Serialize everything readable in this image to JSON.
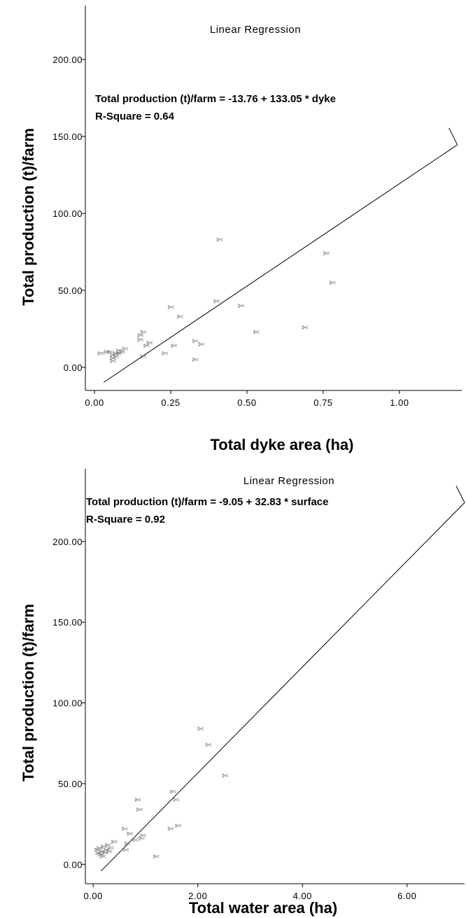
{
  "chart_data": [
    {
      "type": "scatter",
      "title": "Linear Regression",
      "equation": "Total production (t)/farm = -13.76 + 133.05 * dyke",
      "r_square": "R-Square = 0.64",
      "xlabel": "Total dyke area (ha)",
      "ylabel": "Total production (t)/farm",
      "xlim": [
        -0.03,
        1.2
      ],
      "ylim": [
        -15,
        235
      ],
      "xticks": [
        "0.00",
        "0.25",
        "0.50",
        "0.75",
        "1.00"
      ],
      "xtick_values": [
        0,
        0.25,
        0.5,
        0.75,
        1.0
      ],
      "yticks": [
        "0.00",
        "50.00",
        "100.00",
        "150.00",
        "200.00"
      ],
      "ytick_values": [
        0,
        50,
        100,
        150,
        200
      ],
      "fit": {
        "intercept": -13.76,
        "slope": 133.05,
        "x_range": [
          0.03,
          1.19
        ]
      },
      "points": [
        {
          "x": 0.02,
          "y": 9
        },
        {
          "x": 0.04,
          "y": 10
        },
        {
          "x": 0.05,
          "y": 10
        },
        {
          "x": 0.06,
          "y": 8
        },
        {
          "x": 0.06,
          "y": 6
        },
        {
          "x": 0.06,
          "y": 4
        },
        {
          "x": 0.07,
          "y": 9
        },
        {
          "x": 0.07,
          "y": 7
        },
        {
          "x": 0.08,
          "y": 9
        },
        {
          "x": 0.08,
          "y": 11
        },
        {
          "x": 0.09,
          "y": 10
        },
        {
          "x": 0.1,
          "y": 12
        },
        {
          "x": 0.15,
          "y": 18
        },
        {
          "x": 0.15,
          "y": 21
        },
        {
          "x": 0.16,
          "y": 23
        },
        {
          "x": 0.16,
          "y": 7
        },
        {
          "x": 0.17,
          "y": 14
        },
        {
          "x": 0.18,
          "y": 16
        },
        {
          "x": 0.23,
          "y": 9
        },
        {
          "x": 0.25,
          "y": 39
        },
        {
          "x": 0.26,
          "y": 14
        },
        {
          "x": 0.28,
          "y": 33
        },
        {
          "x": 0.33,
          "y": 17
        },
        {
          "x": 0.33,
          "y": 5
        },
        {
          "x": 0.35,
          "y": 15
        },
        {
          "x": 0.4,
          "y": 43
        },
        {
          "x": 0.41,
          "y": 83
        },
        {
          "x": 0.48,
          "y": 40
        },
        {
          "x": 0.53,
          "y": 23
        },
        {
          "x": 0.69,
          "y": 26
        },
        {
          "x": 0.76,
          "y": 74
        },
        {
          "x": 0.78,
          "y": 55
        }
      ]
    },
    {
      "type": "scatter",
      "title": "Linear Regression",
      "equation": "Total production (t)/farm = -9.05 + 32.83 * surface",
      "r_square": "R-Square = 0.92",
      "xlabel": "Total water area  (ha)",
      "ylabel": "Total production (t)/farm",
      "xlim": [
        -0.15,
        7.1
      ],
      "ylim": [
        -12,
        245
      ],
      "xticks": [
        "0.00",
        "2.00",
        "4.00",
        "6.00"
      ],
      "xtick_values": [
        0,
        2,
        4,
        6
      ],
      "yticks": [
        "0.00",
        "50.00",
        "100.00",
        "150.00",
        "200.00"
      ],
      "ytick_values": [
        0,
        50,
        100,
        150,
        200
      ],
      "fit": {
        "intercept": -9.05,
        "slope": 32.83,
        "x_range": [
          0.15,
          7.1
        ]
      },
      "points": [
        {
          "x": 0.08,
          "y": 9
        },
        {
          "x": 0.1,
          "y": 7
        },
        {
          "x": 0.12,
          "y": 10
        },
        {
          "x": 0.14,
          "y": 6
        },
        {
          "x": 0.16,
          "y": 8
        },
        {
          "x": 0.18,
          "y": 5
        },
        {
          "x": 0.2,
          "y": 11
        },
        {
          "x": 0.22,
          "y": 7
        },
        {
          "x": 0.25,
          "y": 9
        },
        {
          "x": 0.28,
          "y": 12
        },
        {
          "x": 0.3,
          "y": 8
        },
        {
          "x": 0.33,
          "y": 10
        },
        {
          "x": 0.4,
          "y": 14
        },
        {
          "x": 0.6,
          "y": 22
        },
        {
          "x": 0.62,
          "y": 9
        },
        {
          "x": 0.65,
          "y": 13
        },
        {
          "x": 0.7,
          "y": 19
        },
        {
          "x": 0.8,
          "y": 15
        },
        {
          "x": 0.85,
          "y": 40
        },
        {
          "x": 0.88,
          "y": 34
        },
        {
          "x": 0.92,
          "y": 16
        },
        {
          "x": 0.95,
          "y": 18
        },
        {
          "x": 1.2,
          "y": 5
        },
        {
          "x": 1.48,
          "y": 22
        },
        {
          "x": 1.52,
          "y": 45
        },
        {
          "x": 1.58,
          "y": 40
        },
        {
          "x": 1.62,
          "y": 24
        },
        {
          "x": 2.05,
          "y": 84
        },
        {
          "x": 2.2,
          "y": 74
        },
        {
          "x": 2.52,
          "y": 55
        }
      ]
    }
  ]
}
